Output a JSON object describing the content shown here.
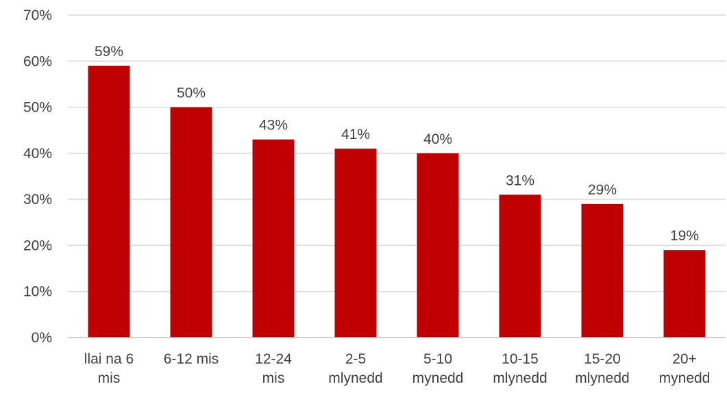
{
  "chart_data": {
    "type": "bar",
    "categories": [
      [
        "llai na 6",
        "mis"
      ],
      [
        "6-12 mis"
      ],
      [
        "12-24",
        "mis"
      ],
      [
        "2-5",
        "mlynedd"
      ],
      [
        "5-10",
        "mynedd"
      ],
      [
        "10-15",
        "mlynedd"
      ],
      [
        "15-20",
        "mlynedd"
      ],
      [
        "20+",
        "mynedd"
      ]
    ],
    "values": [
      59,
      50,
      43,
      41,
      40,
      31,
      29,
      19
    ],
    "data_labels": [
      "59%",
      "50%",
      "43%",
      "41%",
      "40%",
      "31%",
      "29%",
      "19%"
    ],
    "y_ticks": [
      0,
      10,
      20,
      30,
      40,
      50,
      60,
      70
    ],
    "y_tick_labels": [
      "0%",
      "10%",
      "20%",
      "30%",
      "40%",
      "50%",
      "60%",
      "70%"
    ],
    "ylim": [
      0,
      70
    ],
    "grid": true,
    "legend": "none",
    "bar_color": "#c00000",
    "gridline_color": "#d9d9d9",
    "text_color": "#404040"
  }
}
